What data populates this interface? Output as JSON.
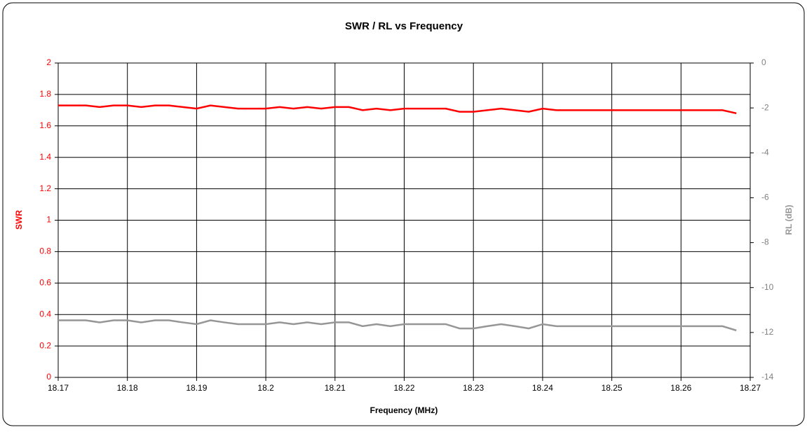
{
  "chart_data": {
    "type": "line",
    "title": "SWR / RL  vs  Frequency",
    "xlabel": "Frequency (MHz)",
    "ylabel": "SWR",
    "y2label": "RL (dB)",
    "x": [
      18.17,
      18.172,
      18.174,
      18.176,
      18.178,
      18.18,
      18.182,
      18.184,
      18.186,
      18.188,
      18.19,
      18.192,
      18.194,
      18.196,
      18.198,
      18.2,
      18.202,
      18.204,
      18.206,
      18.208,
      18.21,
      18.212,
      18.214,
      18.216,
      18.218,
      18.22,
      18.222,
      18.224,
      18.226,
      18.228,
      18.23,
      18.232,
      18.234,
      18.236,
      18.238,
      18.24,
      18.242,
      18.244,
      18.246,
      18.248,
      18.25,
      18.252,
      18.254,
      18.256,
      18.258,
      18.26,
      18.262,
      18.264,
      18.266,
      18.268
    ],
    "series": [
      {
        "name": "SWR",
        "color": "#ff0000",
        "values": [
          1.73,
          1.73,
          1.73,
          1.72,
          1.73,
          1.73,
          1.72,
          1.73,
          1.73,
          1.72,
          1.71,
          1.73,
          1.72,
          1.71,
          1.71,
          1.71,
          1.72,
          1.71,
          1.72,
          1.71,
          1.72,
          1.72,
          1.7,
          1.71,
          1.7,
          1.71,
          1.71,
          1.71,
          1.71,
          1.69,
          1.69,
          1.7,
          1.71,
          1.7,
          1.69,
          1.71,
          1.7,
          1.7,
          1.7,
          1.7,
          1.7,
          1.7,
          1.7,
          1.7,
          1.7,
          1.7,
          1.7,
          1.7,
          1.7,
          1.68
        ]
      },
      {
        "name": "RL",
        "color": "#969696",
        "axis": "y2",
        "values": [
          -11.46,
          -11.46,
          -11.46,
          -11.55,
          -11.46,
          -11.46,
          -11.55,
          -11.46,
          -11.46,
          -11.55,
          -11.63,
          -11.46,
          -11.55,
          -11.63,
          -11.63,
          -11.63,
          -11.55,
          -11.63,
          -11.55,
          -11.63,
          -11.55,
          -11.55,
          -11.72,
          -11.63,
          -11.72,
          -11.63,
          -11.63,
          -11.63,
          -11.63,
          -11.82,
          -11.82,
          -11.72,
          -11.63,
          -11.72,
          -11.82,
          -11.63,
          -11.72,
          -11.72,
          -11.72,
          -11.72,
          -11.72,
          -11.72,
          -11.72,
          -11.72,
          -11.72,
          -11.72,
          -11.72,
          -11.72,
          -11.72,
          -11.91
        ]
      }
    ],
    "xlim": [
      18.17,
      18.27
    ],
    "xticks": [
      18.17,
      18.18,
      18.19,
      18.2,
      18.21,
      18.22,
      18.23,
      18.24,
      18.25,
      18.26,
      18.27
    ],
    "ylim": [
      0,
      2
    ],
    "yticks": [
      0,
      0.2,
      0.4,
      0.6,
      0.8,
      1,
      1.2,
      1.4,
      1.6,
      1.8,
      2
    ],
    "y2lim": [
      -14,
      0
    ],
    "y2ticks": [
      -14,
      -12,
      -10,
      -8,
      -6,
      -4,
      -2,
      0
    ],
    "grid": true
  }
}
